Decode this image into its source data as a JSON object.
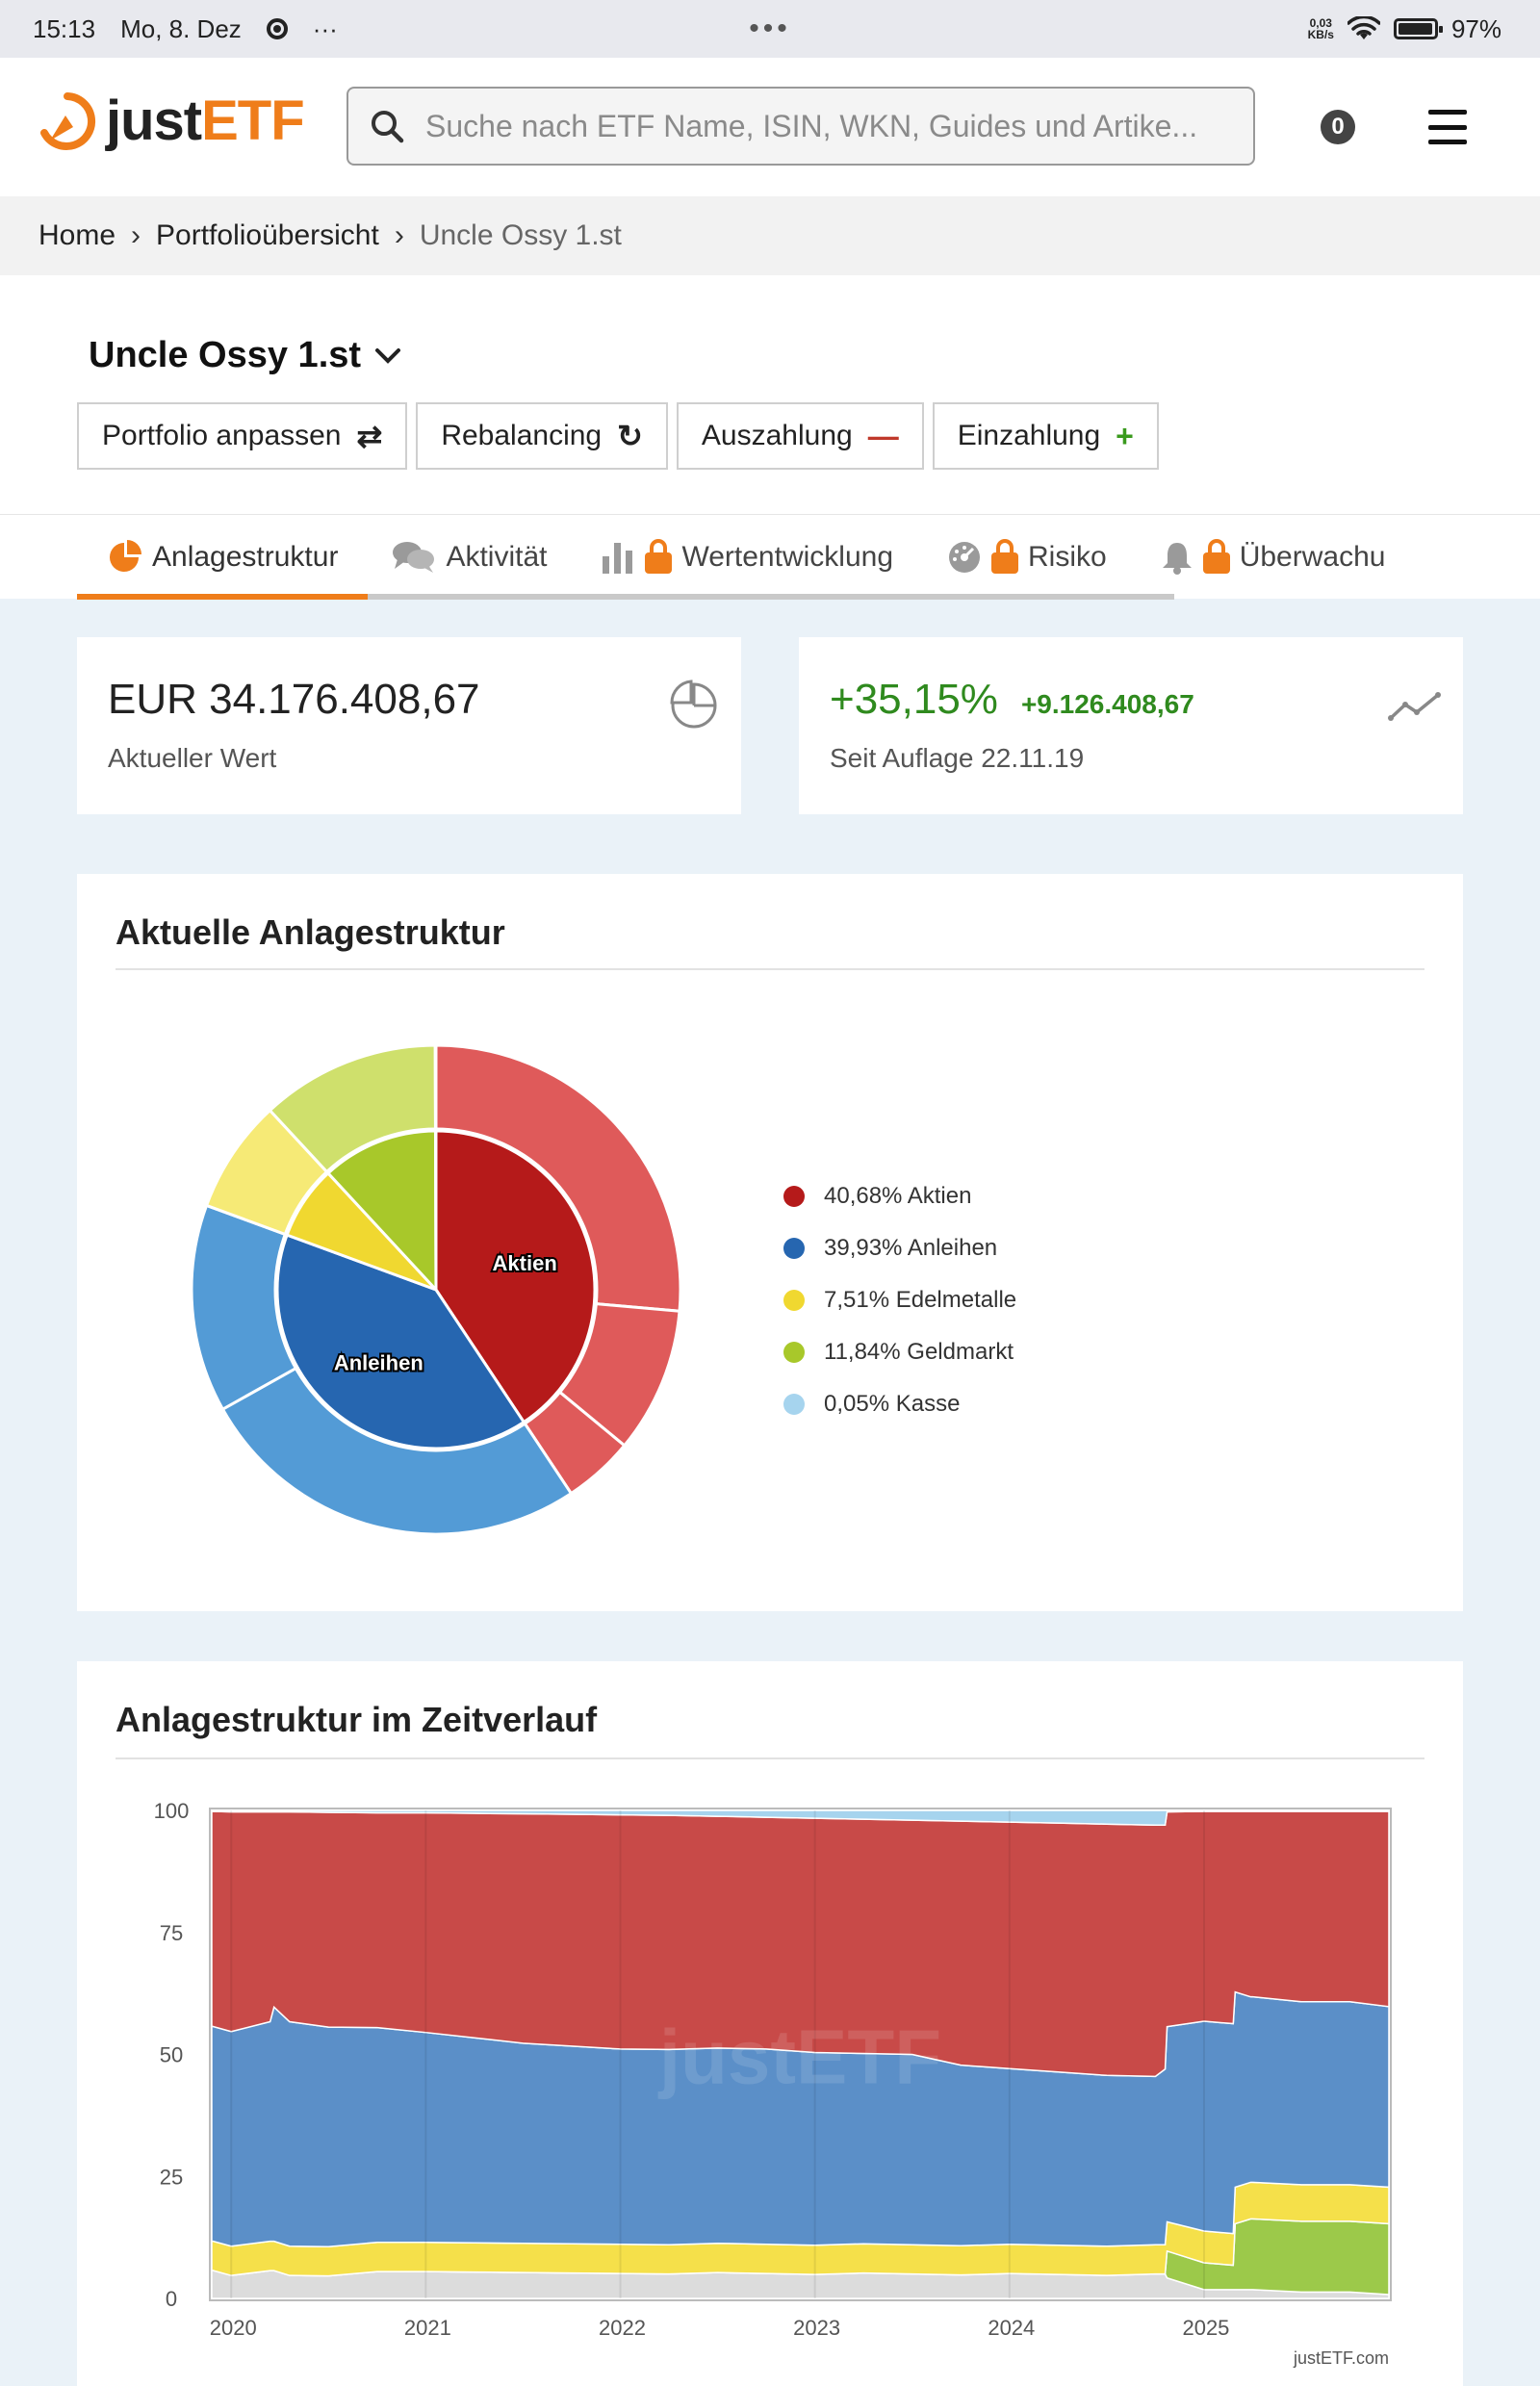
{
  "status_bar": {
    "time": "15:13",
    "date": "Mo, 8. Dez",
    "more": "···",
    "center_dots": "•••",
    "net_speed_value": "0,03",
    "net_speed_unit": "KB/s",
    "battery": "97%"
  },
  "header": {
    "logo_just": "just",
    "logo_etf": "ETF",
    "search_placeholder": "Suche nach ETF Name, ISIN, WKN, Guides und Artike...",
    "notification_count": "0"
  },
  "breadcrumb": [
    "Home",
    "Portfolioübersicht",
    "Uncle Ossy 1.st"
  ],
  "portfolio": {
    "name": "Uncle Ossy 1.st",
    "actions": [
      {
        "label": "Portfolio anpassen",
        "icon": "swap-icon",
        "glyph": "⇄",
        "color": "#222222"
      },
      {
        "label": "Rebalancing",
        "icon": "refresh-icon",
        "glyph": "↻",
        "color": "#222222"
      },
      {
        "label": "Auszahlung",
        "icon": "minus-icon",
        "glyph": "—",
        "color": "#c0392b"
      },
      {
        "label": "Einzahlung",
        "icon": "plus-icon",
        "glyph": "+",
        "color": "#3a9a1e"
      }
    ]
  },
  "tabs": [
    {
      "label": "Anlagestruktur",
      "icon": "pie-chart-icon",
      "locked": false,
      "active": true
    },
    {
      "label": "Aktivität",
      "icon": "chat-icon",
      "locked": false,
      "active": false
    },
    {
      "label": "Wertentwicklung",
      "icon": "bar-chart-icon",
      "locked": true,
      "active": false
    },
    {
      "label": "Risiko",
      "icon": "gauge-icon",
      "locked": true,
      "active": false
    },
    {
      "label": "Überwachu",
      "icon": "bell-icon",
      "locked": true,
      "active": false
    }
  ],
  "summary": {
    "current_value": "EUR 34.176.408,67",
    "current_value_label": "Aktueller Wert",
    "performance_pct": "+35,15%",
    "performance_abs": "+9.126.408,67",
    "since_label": "Seit Auflage 22.11.19"
  },
  "allocation": {
    "title": "Aktuelle Anlagestruktur",
    "inner_labels": [
      "Aktien",
      "Anleihen"
    ],
    "legend": [
      {
        "text": "40,68% Aktien",
        "color": "#b51a1a"
      },
      {
        "text": "39,93% Anleihen",
        "color": "#2666b0"
      },
      {
        "text": "7,51% Edelmetalle",
        "color": "#f0d830"
      },
      {
        "text": "11,84% Geldmarkt",
        "color": "#a8c82a"
      },
      {
        "text": "0,05% Kasse",
        "color": "#a6d4ee"
      }
    ]
  },
  "timeline": {
    "title": "Anlagestruktur im Zeitverlauf",
    "credit": "justETF.com",
    "watermark": "justETF"
  },
  "chart_data": [
    {
      "type": "pie",
      "variant": "donut-two-level",
      "title": "Aktuelle Anlagestruktur",
      "slices": [
        {
          "label": "Aktien",
          "value": 40.68,
          "color": "#b51a1a"
        },
        {
          "label": "Anleihen",
          "value": 39.93,
          "color": "#2666b0"
        },
        {
          "label": "Edelmetalle",
          "value": 7.51,
          "color": "#f0d830"
        },
        {
          "label": "Geldmarkt",
          "value": 11.84,
          "color": "#a8c82a"
        },
        {
          "label": "Kasse",
          "value": 0.05,
          "color": "#a6d4ee"
        }
      ],
      "outer_ring": [
        {
          "group": "Aktien",
          "value": 26.4,
          "color": "#df5a5a"
        },
        {
          "group": "Aktien",
          "value": 9.6,
          "color": "#df5a5a"
        },
        {
          "group": "Aktien",
          "value": 4.68,
          "color": "#df5a5a"
        },
        {
          "group": "Anleihen",
          "value": 26.2,
          "color": "#539bd6"
        },
        {
          "group": "Anleihen",
          "value": 13.73,
          "color": "#539bd6"
        },
        {
          "group": "Edelmetalle",
          "value": 7.51,
          "color": "#f6ea76"
        },
        {
          "group": "Geldmarkt",
          "value": 11.84,
          "color": "#cfe06c"
        },
        {
          "group": "Kasse",
          "value": 0.05,
          "color": "#a6d4ee"
        }
      ],
      "legend_position": "right"
    },
    {
      "type": "area",
      "stacked": true,
      "title": "Anlagestruktur im Zeitverlauf",
      "x": [
        2019.9,
        2020.0,
        2020.2,
        2020.22,
        2020.3,
        2020.5,
        2020.75,
        2021.0,
        2021.25,
        2021.5,
        2021.75,
        2022.0,
        2022.25,
        2022.5,
        2022.75,
        2023.0,
        2023.25,
        2023.5,
        2023.75,
        2024.0,
        2024.25,
        2024.5,
        2024.75,
        2024.8,
        2024.81,
        2025.0,
        2025.15,
        2025.16,
        2025.24,
        2025.25,
        2025.5,
        2025.75,
        2025.95
      ],
      "xticks": [
        "2020",
        "2021",
        "2022",
        "2023",
        "2024",
        "2025"
      ],
      "ylim": [
        0,
        100
      ],
      "yticks": [
        0,
        25,
        50,
        75,
        100
      ],
      "grid": true,
      "series": [
        {
          "name": "Kasse",
          "color": "#a6d4ee",
          "values": [
            0.2,
            0.3,
            0.3,
            0.3,
            0.3,
            0.4,
            0.5,
            0.5,
            0.6,
            0.7,
            0.8,
            0.9,
            1.0,
            1.2,
            1.4,
            1.6,
            1.8,
            2.0,
            2.2,
            2.4,
            2.6,
            2.8,
            3.0,
            3.0,
            0.3,
            0.2,
            0.2,
            0.2,
            0.2,
            0.2,
            0.2,
            0.2,
            0.2
          ]
        },
        {
          "name": "Aktien",
          "color": "#c84a48",
          "values": [
            44,
            45,
            43,
            40,
            43,
            44,
            44,
            45,
            46,
            47,
            47.5,
            48,
            48,
            47.5,
            47.5,
            48,
            48,
            48,
            50,
            50.5,
            51,
            51.5,
            51.5,
            50,
            44,
            43,
            43.5,
            37,
            38,
            38,
            39,
            39,
            40
          ]
        },
        {
          "name": "Anleihen",
          "color": "#5b8fc8",
          "values": [
            44,
            44,
            45,
            48,
            46,
            45,
            44,
            43,
            42,
            41,
            40.5,
            40,
            40,
            40,
            40,
            39.5,
            39,
            39,
            37,
            36,
            35.5,
            35,
            34.5,
            36,
            40,
            43,
            43,
            40,
            38,
            38,
            37.5,
            37.5,
            37
          ]
        },
        {
          "name": "Edelmetalle",
          "color": "#f5e04a",
          "values": [
            6,
            6,
            6,
            6,
            6,
            6,
            6,
            6,
            6,
            6,
            6,
            6,
            6,
            6,
            6,
            6,
            6,
            6,
            6,
            6,
            6,
            6,
            6,
            6,
            6,
            6.5,
            6.5,
            7.5,
            7.5,
            7.5,
            7.5,
            7.5,
            7.5
          ]
        },
        {
          "name": "Geldmarkt",
          "color": "#9cc94a",
          "values": [
            0,
            0,
            0,
            0,
            0,
            0,
            0,
            0,
            0,
            0,
            0,
            0,
            0,
            0,
            0,
            0,
            0,
            0,
            0,
            0,
            0,
            0,
            0,
            0,
            5.5,
            5.5,
            5,
            13.5,
            14.5,
            14.5,
            14.5,
            14.5,
            14.5
          ]
        },
        {
          "name": "Sonstige",
          "color": "#dcdcdc",
          "values": [
            5.8,
            4.7,
            5.7,
            5.7,
            4.7,
            4.6,
            5.5,
            5.5,
            5.4,
            5.3,
            5.2,
            5.1,
            5.0,
            5.3,
            5.1,
            4.9,
            5.2,
            5.0,
            4.8,
            5.1,
            4.9,
            4.7,
            5.0,
            5.0,
            4.2,
            1.8,
            1.8,
            1.8,
            1.8,
            1.8,
            1.3,
            1.3,
            0.8
          ]
        }
      ]
    }
  ]
}
